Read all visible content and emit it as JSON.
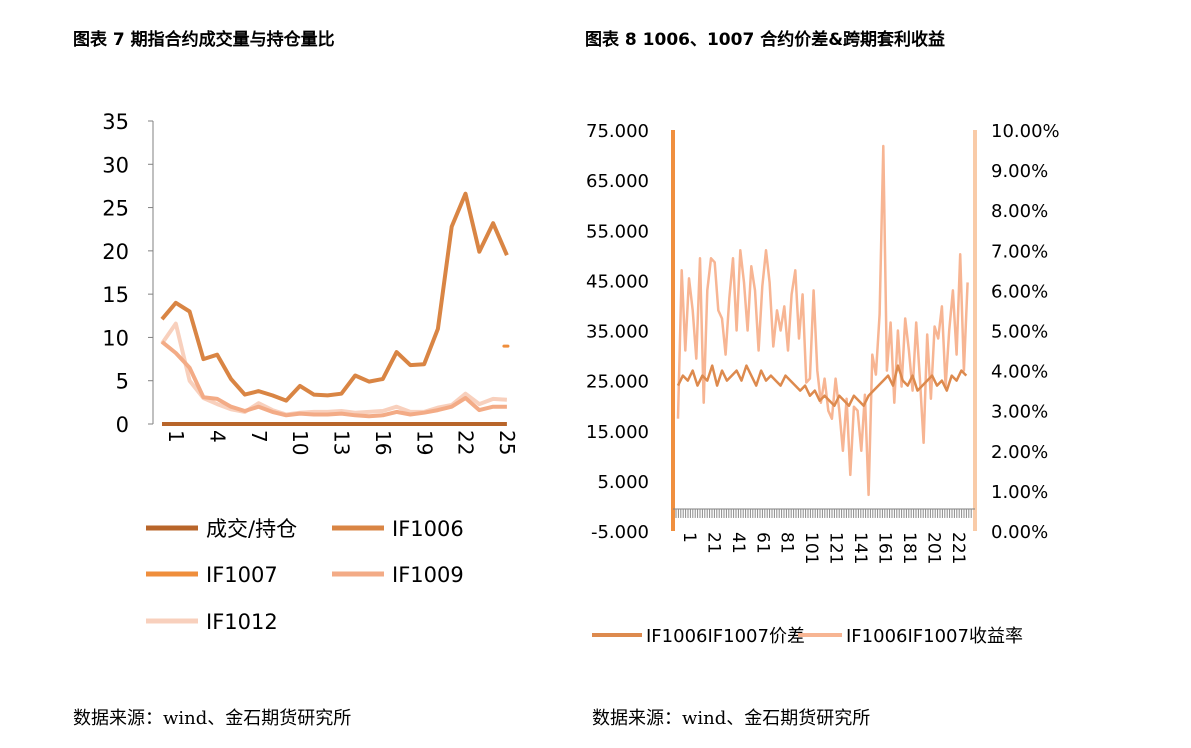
{
  "left": {
    "title": "图表 7 期指合约成交量与持仓量比",
    "source": "数据来源：wind、金石期货研究所"
  },
  "right": {
    "title": "图表 8 1006、1007 合约价差&跨期套利收益",
    "source": "数据来源：wind、金石期货研究所"
  },
  "colors": {
    "chengjiao": "#b8652a",
    "if1006": "#d98544",
    "if1007": "#ef8e3c",
    "if1009": "#f3ab86",
    "if1012": "#f8d0bd",
    "spread": "#dd8a4e",
    "yield": "#f7b593",
    "axis_left": "#f08f3e",
    "axis_right": "#f9cba8"
  },
  "chart_data": [
    {
      "type": "line",
      "categories": [
        1,
        2,
        3,
        4,
        5,
        6,
        7,
        8,
        9,
        10,
        11,
        12,
        13,
        14,
        15,
        16,
        17,
        18,
        19,
        20,
        21,
        22,
        23,
        24,
        25,
        26
      ],
      "xticks": [
        "1",
        "4",
        "7",
        "10",
        "13",
        "16",
        "19",
        "22",
        "25"
      ],
      "ylim": [
        0,
        35
      ],
      "yticks": [
        "0",
        "5",
        "10",
        "15",
        "20",
        "25",
        "30",
        "35"
      ],
      "legend_placement": "bottom",
      "series": [
        {
          "name": "成交/持仓",
          "values": [
            0,
            0,
            0,
            0,
            0,
            0,
            0,
            0,
            0,
            0,
            0,
            0,
            0,
            0,
            0,
            0,
            0,
            0,
            0,
            0,
            0,
            0,
            0,
            0,
            0,
            0
          ]
        },
        {
          "name": "IF1006",
          "values": [
            12.1,
            14,
            13,
            7.5,
            8,
            5.2,
            3.4,
            3.8,
            3.3,
            2.7,
            4.4,
            3.4,
            3.3,
            3.5,
            5.6,
            4.9,
            5.2,
            8.3,
            6.8,
            6.9,
            11,
            22.8,
            26.6,
            19.9,
            23.2,
            19.5
          ]
        },
        {
          "name": "IF1007",
          "values": [
            null,
            null,
            null,
            null,
            null,
            null,
            null,
            null,
            null,
            null,
            null,
            null,
            null,
            null,
            null,
            null,
            null,
            null,
            null,
            null,
            null,
            null,
            null,
            null,
            null,
            9
          ]
        },
        {
          "name": "IF1009",
          "values": [
            9.5,
            8.2,
            6.5,
            3.1,
            2.9,
            2,
            1.5,
            2,
            1.4,
            1,
            1.2,
            1.1,
            1.1,
            1.2,
            1,
            0.9,
            1,
            1.4,
            1.1,
            1.3,
            1.6,
            2,
            3,
            1.6,
            2,
            2
          ]
        },
        {
          "name": "IF1012",
          "values": [
            9.3,
            11.6,
            5,
            3,
            2.3,
            1.7,
            1.4,
            2.4,
            1.6,
            1.1,
            1.3,
            1.4,
            1.4,
            1.5,
            1.3,
            1.4,
            1.5,
            2,
            1.4,
            1.4,
            1.9,
            2.2,
            3.5,
            2.3,
            2.9,
            2.8
          ]
        }
      ]
    },
    {
      "type": "line",
      "xticks": [
        "1",
        "21",
        "41",
        "61",
        "81",
        "101",
        "121",
        "141",
        "161",
        "181",
        "201",
        "221"
      ],
      "ylim": [
        -5,
        75
      ],
      "yticks": [
        "75.000",
        "65.000",
        "55.000",
        "45.000",
        "35.000",
        "25.000",
        "15.000",
        "5.000",
        "-5.000"
      ],
      "y2lim": [
        0,
        10
      ],
      "y2ticks": [
        "10.00%",
        "9.00%",
        "8.00%",
        "7.00%",
        "6.00%",
        "5.00%",
        "4.00%",
        "3.00%",
        "2.00%",
        "1.00%",
        "0.00%"
      ],
      "legend_placement": "bottom",
      "series": [
        {
          "name": "IF1006IF1007价差",
          "axis": "left",
          "x": [
            1,
            5,
            9,
            13,
            17,
            21,
            25,
            29,
            33,
            37,
            41,
            45,
            49,
            53,
            57,
            61,
            65,
            69,
            73,
            77,
            81,
            85,
            89,
            93,
            97,
            101,
            105,
            109,
            113,
            117,
            121,
            125,
            129,
            133,
            137,
            141,
            145,
            149,
            153,
            157,
            161,
            165,
            169,
            173,
            177,
            181,
            185,
            189,
            193,
            197,
            201,
            205,
            209,
            213,
            217,
            221,
            225,
            229,
            233,
            237
          ],
          "values": [
            24,
            26,
            25,
            27,
            24,
            26,
            25,
            28,
            24,
            27,
            25,
            26,
            27,
            25,
            28,
            26,
            24,
            27,
            25,
            26,
            25,
            24,
            26,
            25,
            24,
            23,
            24,
            22,
            23,
            21,
            22,
            21,
            20,
            22,
            21,
            20,
            22,
            21,
            20,
            22,
            23,
            24,
            25,
            26,
            24,
            28,
            25,
            24,
            26,
            23,
            24,
            25,
            26,
            24,
            25,
            23,
            26,
            25,
            27,
            26
          ]
        },
        {
          "name": "IF1006IF1007收益率",
          "axis": "right",
          "x": [
            1,
            4,
            7,
            10,
            13,
            16,
            19,
            22,
            25,
            28,
            31,
            34,
            37,
            40,
            43,
            46,
            49,
            52,
            55,
            58,
            61,
            64,
            67,
            70,
            73,
            76,
            79,
            82,
            85,
            88,
            91,
            94,
            97,
            100,
            103,
            106,
            109,
            112,
            115,
            118,
            121,
            124,
            127,
            130,
            133,
            136,
            139,
            142,
            145,
            148,
            151,
            154,
            157,
            160,
            163,
            166,
            169,
            172,
            175,
            178,
            181,
            184,
            187,
            190,
            193,
            196,
            199,
            202,
            205,
            208,
            211,
            214,
            217,
            220,
            223,
            226,
            229,
            232,
            235,
            238
          ],
          "values": [
            2.8,
            6.5,
            4.5,
            6.3,
            5.5,
            4.3,
            6.8,
            3.2,
            6.0,
            6.8,
            6.7,
            5.5,
            5.3,
            4.4,
            5.8,
            6.8,
            5.0,
            7.0,
            6.2,
            5.0,
            6.6,
            6.0,
            4.5,
            6.1,
            7.0,
            6.2,
            4.6,
            5.5,
            5.0,
            5.6,
            4.5,
            5.9,
            6.5,
            4.8,
            5.9,
            3.7,
            3.8,
            6.0,
            4.0,
            3.2,
            3.8,
            3.0,
            2.8,
            3.8,
            3.0,
            2.0,
            3.3,
            1.4,
            3.1,
            3.0,
            2.0,
            3.4,
            0.9,
            4.4,
            3.9,
            5.4,
            9.6,
            4.0,
            5.2,
            3.2,
            5.0,
            3.6,
            5.3,
            4.5,
            3.5,
            5.2,
            3.8,
            2.2,
            4.9,
            3.3,
            5.1,
            4.8,
            5.6,
            3.6,
            5.0,
            6.0,
            4.4,
            6.9,
            4.0,
            6.2
          ]
        }
      ]
    }
  ]
}
